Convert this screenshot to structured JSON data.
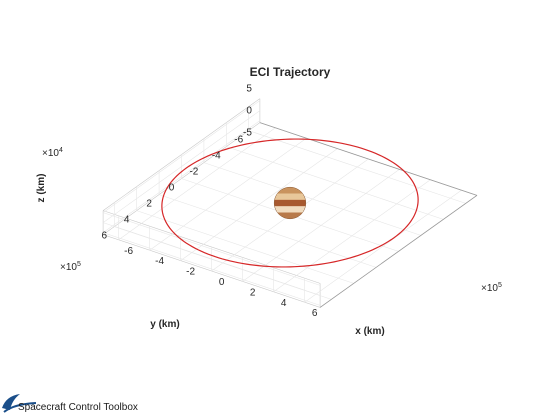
{
  "chart_data": {
    "type": "line",
    "title": "ECI Trajectory",
    "xlabel": "x (km)",
    "ylabel": "y (km)",
    "zlabel": "z (km)",
    "x_exponent": "×10^5",
    "y_exponent": "×10^5",
    "z_exponent": "×10^4",
    "x_ticks": [
      -6,
      -4,
      -2,
      0,
      2,
      4,
      6
    ],
    "y_ticks": [
      -6,
      -4,
      -2,
      0,
      2,
      4,
      6
    ],
    "z_ticks": [
      -5,
      0,
      5
    ],
    "xlim": [
      -7,
      7
    ],
    "ylim": [
      -7,
      7
    ],
    "zlim": [
      -6,
      6
    ],
    "grid": true,
    "orbit_radius": 6.7,
    "series": [
      {
        "color": "#d62728"
      }
    ],
    "central_body_radius": 0.72,
    "central_body_colors": [
      "#c9935e",
      "#e8c79a",
      "#a8592f",
      "#f1dcc0",
      "#b87a4b"
    ]
  },
  "footer": {
    "text": "Spacecraft Control Toolbox"
  },
  "exponent_base": "×10",
  "colors": {
    "orbit": "#d62728",
    "grid": "#e6e6e6",
    "axis": "#c8c8c8",
    "logo": "#1b4f8a"
  }
}
